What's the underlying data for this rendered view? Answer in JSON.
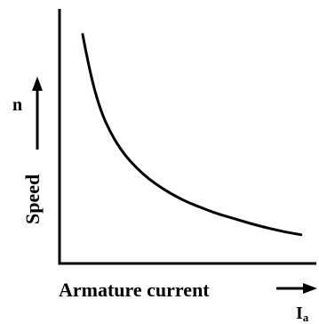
{
  "chart_data": {
    "type": "line",
    "title": "",
    "xlabel": "Armature current",
    "xlabel_symbol": "I",
    "xlabel_subscript": "a",
    "ylabel": "Speed",
    "ylabel_symbol": "n",
    "ticks": false,
    "grid": false,
    "xlim": [
      0,
      1
    ],
    "ylim": [
      0,
      1
    ],
    "series": [
      {
        "x": [
          0.09,
          0.12,
          0.16,
          0.2,
          0.25,
          0.3,
          0.35,
          0.4,
          0.45,
          0.5,
          0.55,
          0.6,
          0.65,
          0.7,
          0.75,
          0.8,
          0.85,
          0.9,
          0.94
        ],
        "y": [
          0.9,
          0.74,
          0.6,
          0.51,
          0.43,
          0.375,
          0.33,
          0.295,
          0.265,
          0.24,
          0.22,
          0.2,
          0.185,
          0.17,
          0.155,
          0.142,
          0.13,
          0.12,
          0.113
        ],
        "color": "#000000"
      }
    ]
  }
}
